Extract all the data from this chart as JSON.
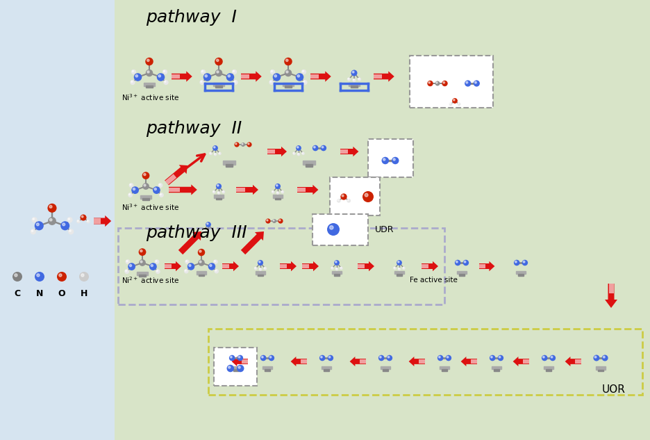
{
  "bg_left_color": "#d6e4f0",
  "bg_right_color": "#d8e4c8",
  "title_pathway1": "pathway  I",
  "title_pathway2": "pathway  II",
  "title_pathway3": "pathway  III",
  "label_ni3_1": "Ni$^{3+}$ active site",
  "label_ni3_2": "Ni$^{3+}$ active site",
  "label_ni2": "Ni$^{2+}$ active site",
  "label_fe": "Fe active site",
  "label_udr": "UDR",
  "label_uor": "UOR",
  "legend_labels": [
    "C",
    "N",
    "O",
    "H"
  ],
  "legend_colors": [
    "#808080",
    "#4169e1",
    "#cc2200",
    "#cccccc"
  ],
  "arrow_color": "#dd1111",
  "dashed_box_color": "#999999",
  "dashed_pathway3_color": "#aaaacc",
  "dashed_uor_color": "#cccc44"
}
